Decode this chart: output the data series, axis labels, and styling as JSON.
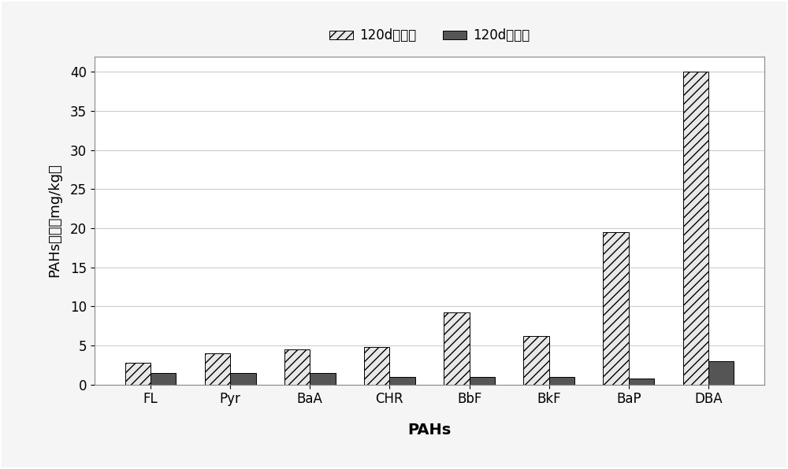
{
  "categories": [
    "FL",
    "Pyr",
    "BaA",
    "CHR",
    "BbF",
    "BkF",
    "BaP",
    "DBA"
  ],
  "before_planting": [
    2.8,
    4.0,
    4.5,
    4.8,
    9.2,
    6.2,
    19.5,
    40.0
  ],
  "after_planting": [
    1.5,
    1.5,
    1.5,
    1.0,
    1.0,
    1.0,
    0.8,
    3.0
  ],
  "legend_before": "120d种植前",
  "legend_after": "120d种植后",
  "xlabel": "PAHs",
  "ylabel": "PAHs浓度（mg/kg）",
  "ylim": [
    0,
    42
  ],
  "yticks": [
    0,
    5,
    10,
    15,
    20,
    25,
    30,
    35,
    40
  ],
  "hatch_before": "///",
  "color_before": "#e8e8e8",
  "color_after": "#555555",
  "background_color": "#ffffff",
  "figure_bg": "#f5f5f5",
  "axis_fontsize": 13,
  "tick_fontsize": 12,
  "legend_fontsize": 12,
  "bar_width": 0.32,
  "grid_color": "#cccccc",
  "border_color": "#aaaaaa"
}
